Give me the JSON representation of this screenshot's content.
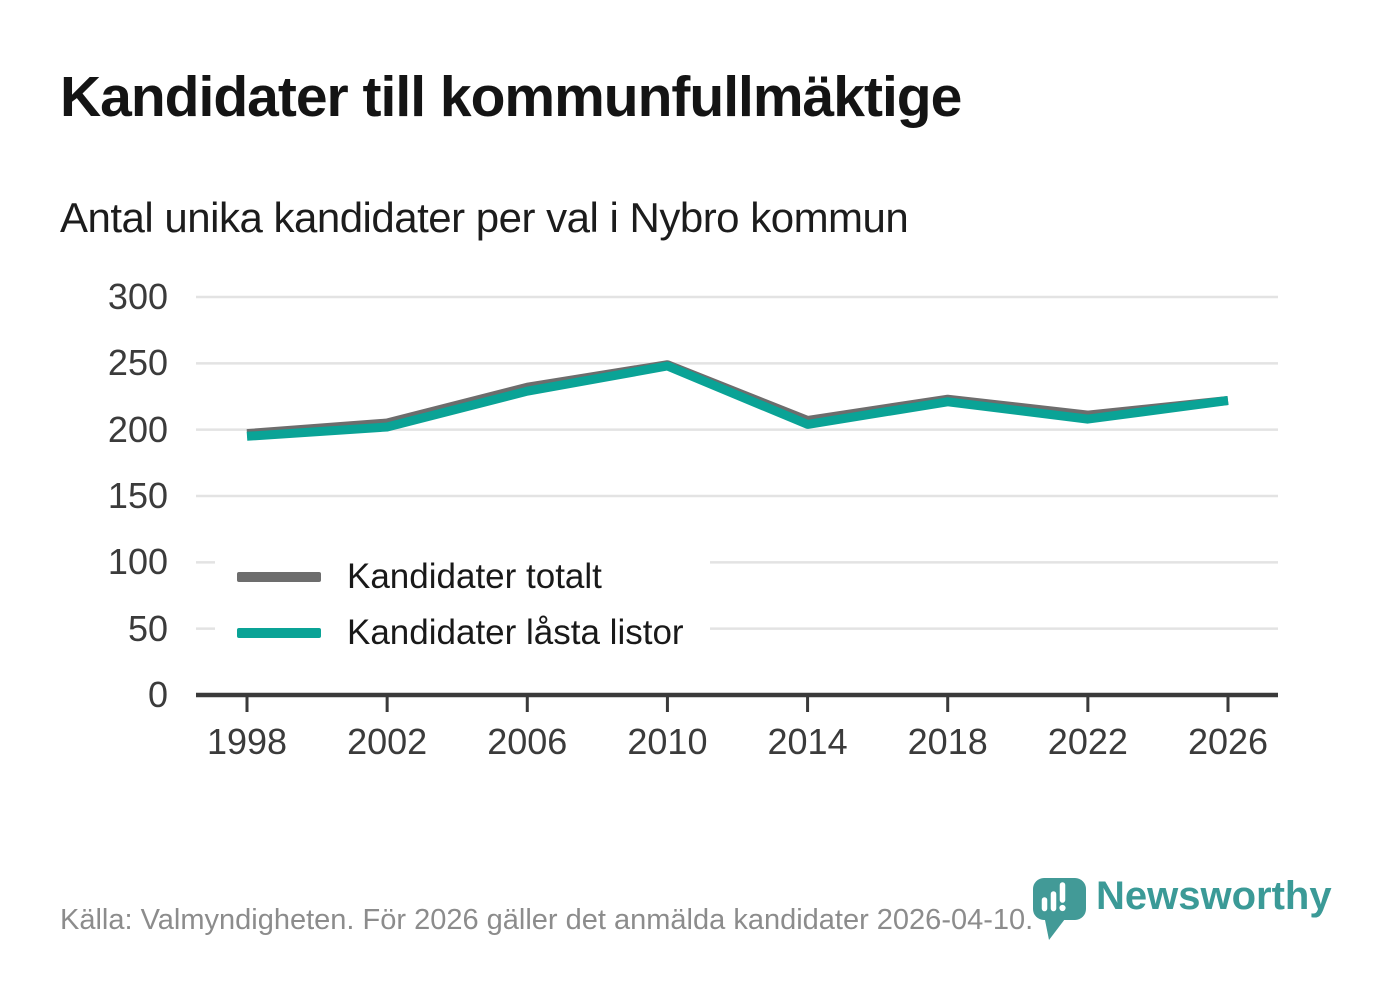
{
  "header": {
    "title": "Kandidater till kommunfullmäktige",
    "subtitle": "Antal unika kandidater per val i Nybro kommun"
  },
  "chart_data": {
    "type": "line",
    "x": [
      1998,
      2002,
      2006,
      2010,
      2014,
      2018,
      2022,
      2026
    ],
    "series": [
      {
        "name": "Kandidater totalt",
        "color": "#6d6d6d",
        "values": [
          197,
          205,
          232,
          249,
          207,
          223,
          211,
          222
        ]
      },
      {
        "name": "Kandidater låsta listor",
        "color": "#0aa396",
        "values": [
          195,
          202,
          229,
          248,
          204,
          221,
          208,
          222
        ]
      }
    ],
    "title": "Kandidater till kommunfullmäktige",
    "subtitle": "Antal unika kandidater per val i Nybro kommun",
    "xlabel": "",
    "ylabel": "",
    "ylim": [
      0,
      300
    ],
    "yticks": [
      0,
      50,
      100,
      150,
      200,
      250,
      300
    ],
    "grid": true,
    "legend_position": "inside-left"
  },
  "colors": {
    "series_total": "#6d6d6d",
    "series_locked_lists": "#0aa396",
    "gridline": "#e3e3e3",
    "axis": "#3a3a3a",
    "brand_teal": "#3b9a97",
    "footer_text": "#8c8c8c"
  },
  "footer": {
    "source": "Källa: Valmyndigheten. För 2026 gäller det anmälda kandidater 2026-04-10.",
    "brand": "Newsworthy"
  }
}
